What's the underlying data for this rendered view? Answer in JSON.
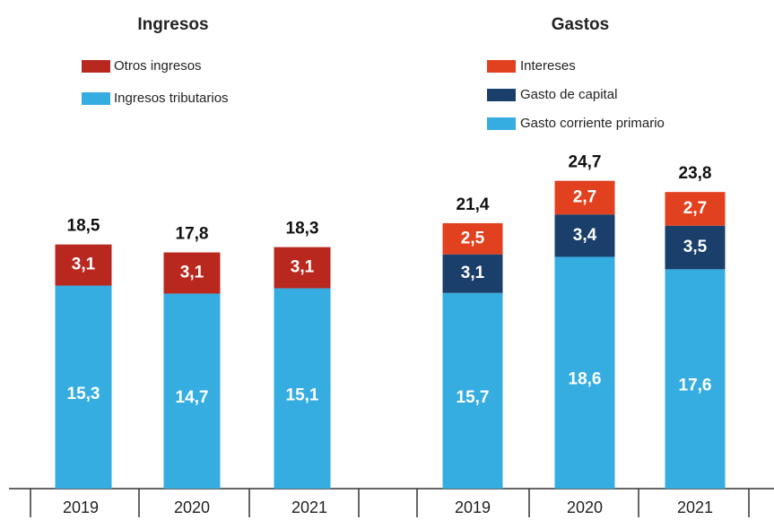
{
  "chart_data": [
    {
      "type": "bar",
      "stacked": true,
      "title": "Ingresos",
      "categories": [
        "2019",
        "2020",
        "2021"
      ],
      "series": [
        {
          "name": "Ingresos tributarios",
          "color": "#36ade1",
          "values": [
            15.3,
            14.7,
            15.1
          ],
          "value_labels": [
            "15,3",
            "14,7",
            "15,1"
          ]
        },
        {
          "name": "Otros ingresos",
          "color": "#b8281f",
          "values": [
            3.1,
            3.1,
            3.1
          ],
          "value_labels": [
            "3,1",
            "3,1",
            "3,1"
          ]
        }
      ],
      "totals": [
        18.5,
        17.8,
        18.3
      ],
      "total_labels": [
        "18,5",
        "17,8",
        "18,3"
      ]
    },
    {
      "type": "bar",
      "stacked": true,
      "title": "Gastos",
      "categories": [
        "2019",
        "2020",
        "2021"
      ],
      "series": [
        {
          "name": "Gasto corriente primario",
          "color": "#36ade1",
          "values": [
            15.7,
            18.6,
            17.6
          ],
          "value_labels": [
            "15,7",
            "18,6",
            "17,6"
          ]
        },
        {
          "name": "Gasto de capital",
          "color": "#1b3f6b",
          "values": [
            3.1,
            3.4,
            3.5
          ],
          "value_labels": [
            "3,1",
            "3,4",
            "3,5"
          ]
        },
        {
          "name": "Intereses",
          "color": "#e2411f",
          "values": [
            2.5,
            2.7,
            2.7
          ],
          "value_labels": [
            "2,5",
            "2,7",
            "2,7"
          ]
        }
      ],
      "totals": [
        21.4,
        24.7,
        23.8
      ],
      "total_labels": [
        "21,4",
        "24,7",
        "23,8"
      ]
    }
  ]
}
